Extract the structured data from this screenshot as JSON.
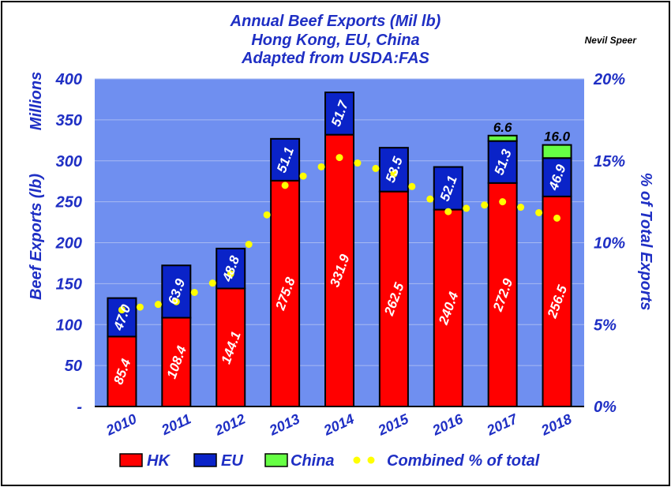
{
  "header": {
    "title_line1": "Annual Beef Exports (Mil lb)",
    "title_line2": "Hong Kong, EU, China",
    "title_line3": "Adapted from USDA:FAS",
    "credit": "Nevil Speer"
  },
  "colors": {
    "plot_bg": "#6f8ff0",
    "hk": "#ff0000",
    "eu": "#0a23c8",
    "china": "#66ff44",
    "combined": "#ffff00",
    "text": "#1f2fc4"
  },
  "chart_data": {
    "type": "bar",
    "stacked": true,
    "categories": [
      "2010",
      "2011",
      "2012",
      "2013",
      "2014",
      "2015",
      "2016",
      "2017",
      "2018"
    ],
    "series": [
      {
        "name": "HK",
        "values": [
          85.4,
          108.4,
          144.1,
          275.8,
          331.9,
          262.5,
          240.4,
          272.9,
          256.5
        ],
        "labels": [
          "85.4",
          "108.4",
          "144.1",
          "275.8",
          "331.9",
          "262.5",
          "240.4",
          "272.9",
          "256.5"
        ]
      },
      {
        "name": "EU",
        "values": [
          47.0,
          63.9,
          48.8,
          51.1,
          51.7,
          53.5,
          52.1,
          51.3,
          46.9
        ],
        "labels": [
          "47.0",
          "63.9",
          "48.8",
          "51.1",
          "51.7",
          "53.5",
          "52.1",
          "51.3",
          "46.9"
        ]
      },
      {
        "name": "China",
        "values": [
          0,
          0,
          0,
          0,
          0,
          0,
          0,
          6.6,
          16.0
        ],
        "labels": [
          "",
          "",
          "",
          "",
          "",
          "",
          "",
          "6.6",
          "16.0"
        ]
      }
    ],
    "line_series": {
      "name": "Combined % of total",
      "axis": "right",
      "values": [
        5.9,
        6.4,
        8.1,
        13.5,
        15.2,
        14.2,
        11.9,
        12.5,
        11.5
      ]
    },
    "ylabel": "Beef Exports (lb)",
    "ylabel_unit": "Millions",
    "y2label": "% of Total Exports",
    "ylim": [
      0,
      400
    ],
    "y_ticks": [
      "-",
      "50",
      "100",
      "150",
      "200",
      "250",
      "300",
      "350",
      "400"
    ],
    "y2lim": [
      0,
      20
    ],
    "y2_ticks": [
      "0%",
      "5%",
      "10%",
      "15%",
      "20%"
    ],
    "grid": true,
    "legend_position": "bottom",
    "legend": [
      "HK",
      "EU",
      "China",
      "Combined % of total"
    ]
  }
}
